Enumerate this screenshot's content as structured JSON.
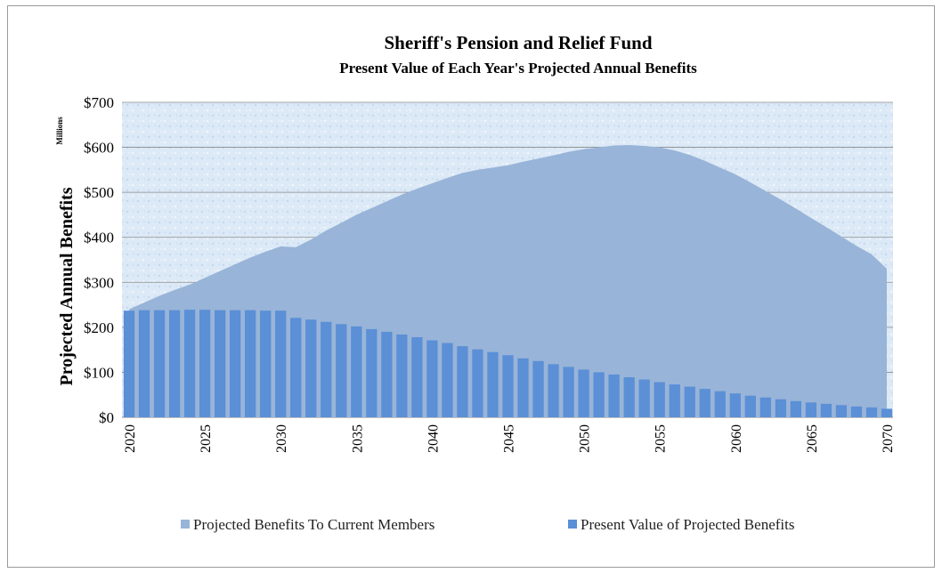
{
  "chart_data": {
    "type": "area",
    "title": "Sheriff's Pension and Relief Fund",
    "subtitle": "Present Value of Each Year's Projected Annual Benefits",
    "ylabel": "Projected Annual Benefits",
    "y_units_label": "Millions",
    "xlabel": "",
    "ylim": [
      0,
      700
    ],
    "y_ticks": [
      0,
      100,
      200,
      300,
      400,
      500,
      600,
      700
    ],
    "y_tick_labels": [
      "$0",
      "$100",
      "$200",
      "$300",
      "$400",
      "$500",
      "$600",
      "$700"
    ],
    "x": [
      2020,
      2021,
      2022,
      2023,
      2024,
      2025,
      2026,
      2027,
      2028,
      2029,
      2030,
      2031,
      2032,
      2033,
      2034,
      2035,
      2036,
      2037,
      2038,
      2039,
      2040,
      2041,
      2042,
      2043,
      2044,
      2045,
      2046,
      2047,
      2048,
      2049,
      2050,
      2051,
      2052,
      2053,
      2054,
      2055,
      2056,
      2057,
      2058,
      2059,
      2060,
      2061,
      2062,
      2063,
      2064,
      2065,
      2066,
      2067,
      2068,
      2069,
      2070
    ],
    "x_tick_labels": [
      "2020",
      "2025",
      "2030",
      "2035",
      "2040",
      "2045",
      "2050",
      "2055",
      "2060",
      "2065",
      "2070"
    ],
    "grid": true,
    "legend_position": "bottom",
    "series": [
      {
        "name": "Projected Benefits To Current Members",
        "kind": "area",
        "color": "#98b4d8",
        "values": [
          240,
          255,
          270,
          283,
          295,
          310,
          325,
          340,
          355,
          368,
          380,
          378,
          395,
          415,
          432,
          450,
          465,
          480,
          495,
          508,
          520,
          532,
          543,
          550,
          555,
          560,
          568,
          575,
          582,
          590,
          596,
          600,
          604,
          605,
          603,
          600,
          593,
          583,
          570,
          555,
          540,
          522,
          503,
          484,
          464,
          443,
          423,
          402,
          381,
          362,
          330
        ]
      },
      {
        "name": "Present Value of Projected Benefits",
        "kind": "bar",
        "color": "#5b8fd6",
        "values": [
          237,
          238,
          238,
          238,
          239,
          239,
          238,
          238,
          238,
          237,
          237,
          221,
          217,
          212,
          207,
          202,
          196,
          190,
          184,
          178,
          171,
          165,
          158,
          151,
          145,
          138,
          131,
          125,
          118,
          112,
          106,
          100,
          95,
          89,
          84,
          78,
          73,
          68,
          63,
          58,
          53,
          48,
          44,
          40,
          36,
          33,
          30,
          27,
          24,
          22,
          19
        ]
      }
    ],
    "colors": {
      "plot_background": "#dce9f6",
      "gridline": "#8a8a8a",
      "frame_border": "#9a9a9a"
    }
  }
}
